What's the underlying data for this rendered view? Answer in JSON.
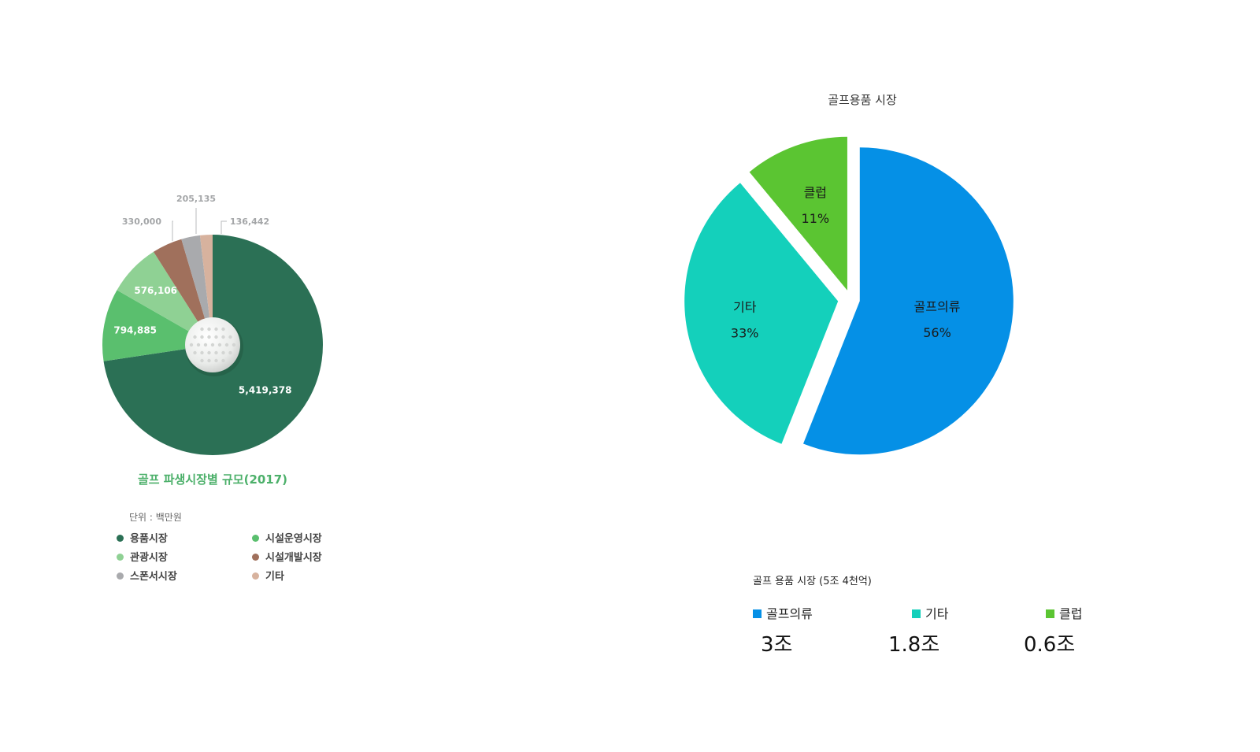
{
  "chart_data": [
    {
      "type": "pie",
      "title": "골프 파생시장별 규모(2017)",
      "unit_label": "단위 : 백만원",
      "slices": [
        {
          "label": "용품시장",
          "value": 5419378,
          "value_label": "5,419,378",
          "color": "#2b7055"
        },
        {
          "label": "시설운영시장",
          "value": 794885,
          "value_label": "794,885",
          "color": "#5abf6e"
        },
        {
          "label": "관광시장",
          "value": 576106,
          "value_label": "576,106",
          "color": "#8fd194"
        },
        {
          "label": "시설개발시장",
          "value": 330000,
          "value_label": "330,000",
          "color": "#a0705c"
        },
        {
          "label": "스폰서시장",
          "value": 205135,
          "value_label": "205,135",
          "color": "#a9aaad"
        },
        {
          "label": "기타",
          "value": 136442,
          "value_label": "136,442",
          "color": "#d7b29e"
        }
      ],
      "legend": [
        {
          "label": "용품시장",
          "color": "#2b7055"
        },
        {
          "label": "시설운영시장",
          "color": "#5abf6e"
        },
        {
          "label": "관광시장",
          "color": "#8fd194"
        },
        {
          "label": "시설개발시장",
          "color": "#a0705c"
        },
        {
          "label": "스폰서시장",
          "color": "#a9aaad"
        },
        {
          "label": "기타",
          "color": "#d7b29e"
        }
      ],
      "legend_placement": "bottom",
      "center_icon": "golf-ball-icon"
    },
    {
      "type": "pie",
      "title": "골프용품 시장",
      "subtitle": "골프 용품 시장 (5조 4천억)",
      "slices": [
        {
          "label": "골프의류",
          "value": 56,
          "percent_label": "56%",
          "amount_label": "3조",
          "color": "#0590e6",
          "exploded": true
        },
        {
          "label": "기타",
          "value": 33,
          "percent_label": "33%",
          "amount_label": "1.8조",
          "color": "#14d0bb",
          "exploded": true
        },
        {
          "label": "클럽",
          "value": 11,
          "percent_label": "11%",
          "amount_label": "0.6조",
          "color": "#5bc532",
          "exploded": true
        }
      ],
      "legend_placement": "bottom"
    }
  ]
}
